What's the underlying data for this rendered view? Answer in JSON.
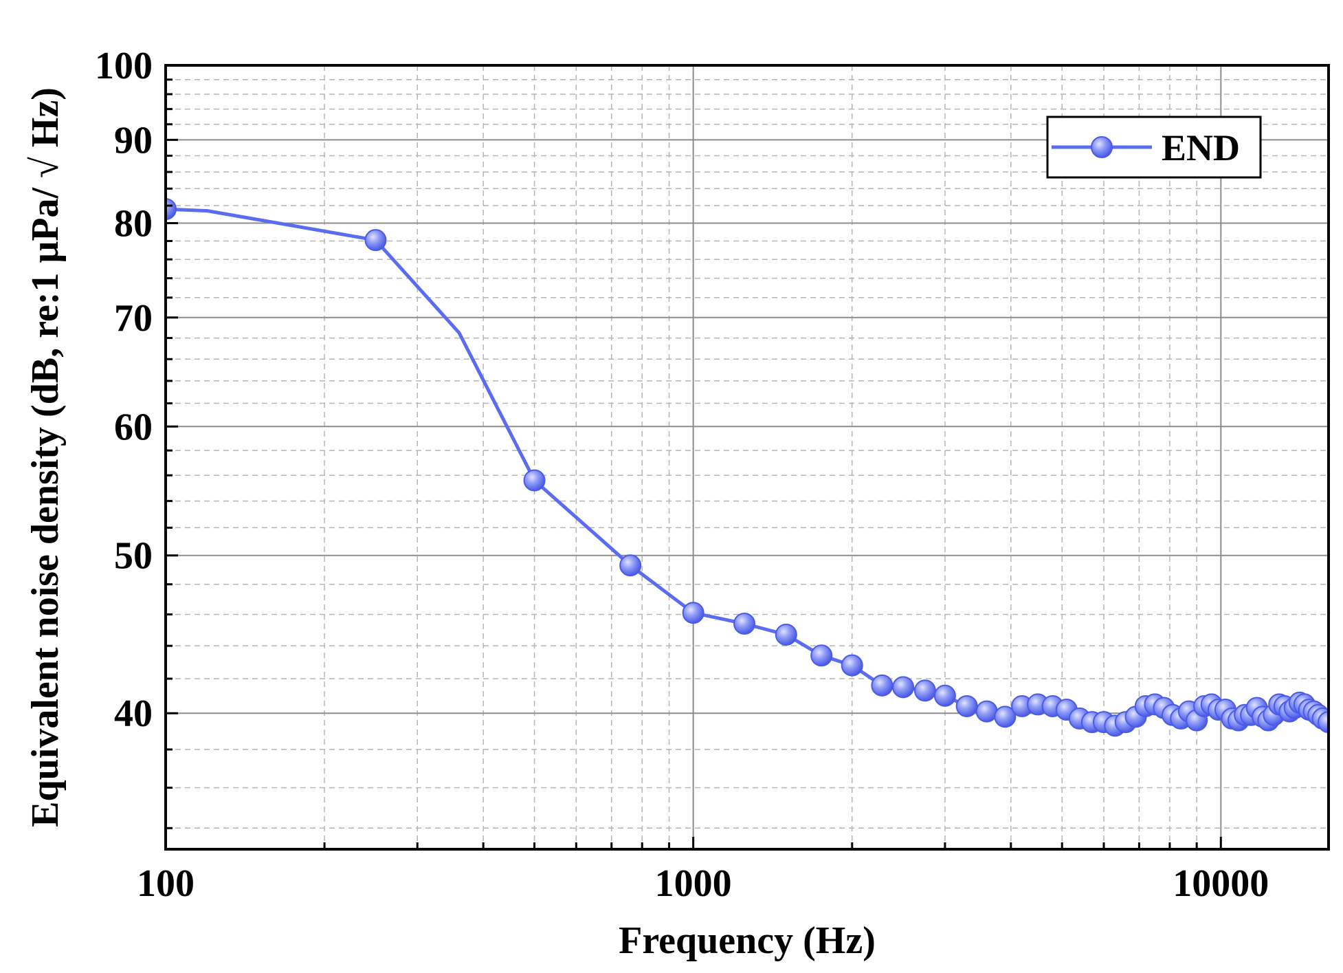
{
  "chart_data": {
    "type": "line",
    "xlabel": "Frequency (Hz)",
    "ylabel": "Equivalent noise density (dB, re:1 μPa/ √ Hz)",
    "x_scale": "log",
    "y_scale": "log",
    "xlim": [
      100,
      16000
    ],
    "ylim": [
      33,
      100
    ],
    "x_ticks": [
      "100",
      "1000",
      "10000"
    ],
    "y_ticks": [
      "40",
      "50",
      "60",
      "70",
      "80",
      "90",
      "100"
    ],
    "grid": true,
    "legend_position": "top-right",
    "colors": {
      "series": "#5b6cf0",
      "marker_fill": "#8f9cf7",
      "grid_major": "#8c8c8c",
      "grid_minor": "#b4b4b4"
    },
    "series": [
      {
        "name": "END",
        "x": [
          100,
          120,
          250,
          360,
          500,
          760,
          1000,
          1250,
          1500,
          1750,
          2000,
          2280,
          2500,
          2750,
          3000,
          3300,
          3600,
          3900,
          4200,
          4500,
          4800,
          5100,
          5400,
          5700,
          6000,
          6300,
          6600,
          6900,
          7200,
          7500,
          7800,
          8100,
          8400,
          8700,
          9000,
          9300,
          9600,
          9900,
          10200,
          10500,
          10800,
          11100,
          11400,
          11700,
          12000,
          12300,
          12600,
          12900,
          13200,
          13500,
          13800,
          14100,
          14400,
          14700,
          15000,
          15300,
          15600,
          16000
        ],
        "y": [
          81.6,
          81.4,
          78.1,
          68.5,
          55.6,
          49.3,
          46.1,
          45.4,
          44.7,
          43.4,
          42.8,
          41.6,
          41.5,
          41.3,
          41.0,
          40.4,
          40.1,
          39.8,
          40.4,
          40.5,
          40.4,
          40.2,
          39.7,
          39.5,
          39.5,
          39.3,
          39.5,
          39.8,
          40.4,
          40.5,
          40.3,
          39.9,
          39.7,
          40.1,
          39.6,
          40.4,
          40.5,
          40.2,
          40.2,
          39.7,
          39.6,
          39.9,
          39.9,
          40.3,
          39.8,
          39.6,
          39.9,
          40.5,
          40.4,
          40.1,
          40.3,
          40.6,
          40.5,
          40.2,
          40.1,
          39.9,
          39.7,
          39.5
        ],
        "markers": [
          true,
          false,
          true,
          false,
          true,
          true,
          true,
          true,
          true,
          true,
          true,
          true,
          true,
          true,
          true,
          true,
          true,
          true,
          true,
          true,
          true,
          true,
          true,
          true,
          true,
          true,
          true,
          true,
          true,
          true,
          true,
          true,
          true,
          true,
          true,
          true,
          true,
          true,
          true,
          true,
          true,
          true,
          true,
          true,
          true,
          true,
          true,
          true,
          true,
          true,
          true,
          true,
          true,
          true,
          true,
          true,
          true,
          true
        ]
      }
    ]
  }
}
